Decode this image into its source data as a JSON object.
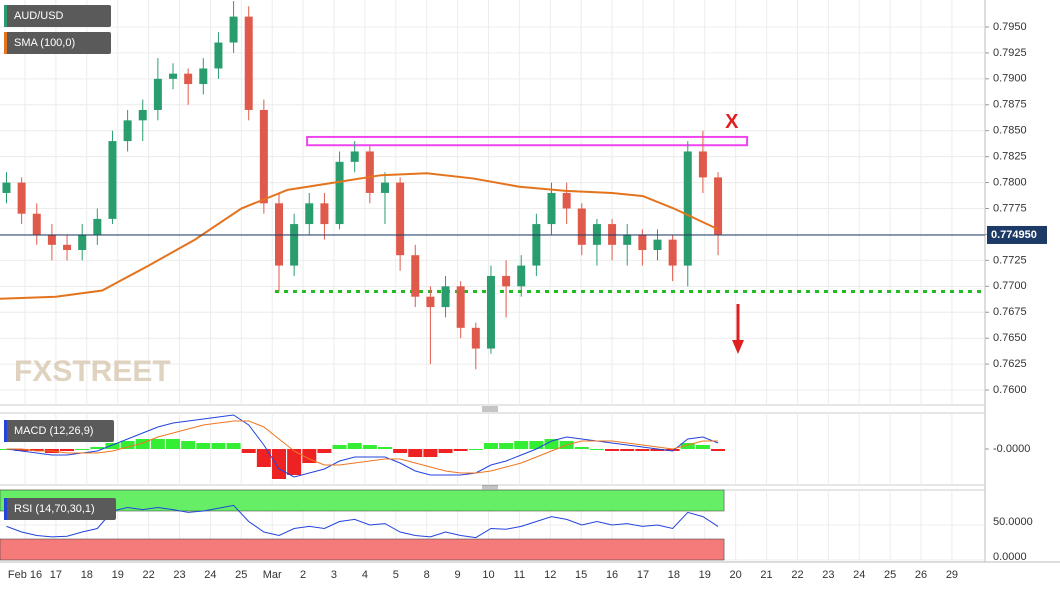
{
  "chart_data": {
    "type": "candlestick",
    "series_name": "AUD/USD",
    "watermark": "FXSTREET",
    "up_color": "#2a9d6f",
    "down_color": "#e05a4c",
    "x": [
      -0.6,
      -0.11,
      0.38,
      0.87,
      1.36,
      1.85,
      2.34,
      2.83,
      3.32,
      3.81,
      4.3,
      4.79,
      5.28,
      5.77,
      6.26,
      6.75,
      7.24,
      7.73,
      8.22,
      8.71,
      9.2,
      9.69,
      10.18,
      10.67,
      11.16,
      11.65,
      12.14,
      12.63,
      13.12,
      13.61,
      14.1,
      14.59,
      15.08,
      15.57,
      16.06,
      16.55,
      17.04,
      17.53,
      18.02,
      18.51,
      19.0,
      19.49,
      19.98,
      20.47,
      20.96,
      21.45,
      21.94,
      22.43
    ],
    "open": [
      0.779,
      0.78,
      0.777,
      0.775,
      0.774,
      0.7735,
      0.775,
      0.7765,
      0.784,
      0.786,
      0.787,
      0.79,
      0.7905,
      0.7895,
      0.791,
      0.7935,
      0.796,
      0.787,
      0.778,
      0.772,
      0.776,
      0.778,
      0.776,
      0.782,
      0.783,
      0.779,
      0.78,
      0.773,
      0.769,
      0.768,
      0.77,
      0.766,
      0.764,
      0.771,
      0.77,
      0.772,
      0.776,
      0.779,
      0.7775,
      0.774,
      0.776,
      0.774,
      0.775,
      0.7735,
      0.7745,
      0.772,
      0.783,
      0.7805
    ],
    "high": [
      0.781,
      0.7805,
      0.778,
      0.776,
      0.775,
      0.776,
      0.7775,
      0.785,
      0.787,
      0.788,
      0.792,
      0.7915,
      0.791,
      0.792,
      0.7945,
      0.7975,
      0.797,
      0.788,
      0.779,
      0.777,
      0.779,
      0.779,
      0.783,
      0.784,
      0.7835,
      0.781,
      0.7805,
      0.774,
      0.77,
      0.771,
      0.7705,
      0.7665,
      0.772,
      0.7725,
      0.773,
      0.777,
      0.78,
      0.78,
      0.778,
      0.7765,
      0.7765,
      0.776,
      0.7755,
      0.7755,
      0.775,
      0.784,
      0.785,
      0.781
    ],
    "low": [
      0.778,
      0.776,
      0.774,
      0.7725,
      0.7725,
      0.7725,
      0.774,
      0.776,
      0.783,
      0.784,
      0.786,
      0.789,
      0.7875,
      0.7885,
      0.79,
      0.7925,
      0.786,
      0.777,
      0.7695,
      0.771,
      0.775,
      0.7745,
      0.7755,
      0.781,
      0.778,
      0.776,
      0.7715,
      0.768,
      0.7625,
      0.767,
      0.765,
      0.762,
      0.7635,
      0.767,
      0.769,
      0.771,
      0.775,
      0.776,
      0.773,
      0.772,
      0.7725,
      0.772,
      0.772,
      0.7725,
      0.7705,
      0.77,
      0.779,
      0.773
    ],
    "close": [
      0.78,
      0.777,
      0.775,
      0.774,
      0.7735,
      0.775,
      0.7765,
      0.784,
      0.786,
      0.787,
      0.79,
      0.7905,
      0.7895,
      0.791,
      0.7935,
      0.796,
      0.787,
      0.778,
      0.772,
      0.776,
      0.778,
      0.776,
      0.782,
      0.783,
      0.779,
      0.78,
      0.773,
      0.769,
      0.768,
      0.77,
      0.766,
      0.764,
      0.771,
      0.77,
      0.772,
      0.776,
      0.779,
      0.7775,
      0.774,
      0.776,
      0.774,
      0.775,
      0.7735,
      0.7745,
      0.772,
      0.783,
      0.7805,
      0.775
    ],
    "sma": {
      "name": "SMA (100,0)",
      "color": "#e4731e",
      "x": [
        -0.81,
        1,
        2.5,
        4,
        5.5,
        7,
        8.5,
        10,
        11.5,
        13,
        14.5,
        16,
        17.5,
        19,
        20,
        21,
        22.43
      ],
      "values": [
        0.7688,
        0.769,
        0.7696,
        0.772,
        0.7745,
        0.7775,
        0.7793,
        0.78,
        0.7807,
        0.7809,
        0.7804,
        0.7796,
        0.7792,
        0.779,
        0.7787,
        0.7775,
        0.7755
      ]
    },
    "current_price": {
      "value": 0.77495,
      "label": "0.774950"
    },
    "resistance": {
      "low": 0.7836,
      "high": 0.7844,
      "x": [
        9.13,
        23.37
      ],
      "color": "#ee44ee"
    },
    "support": {
      "value": 0.7695,
      "x": [
        8.09,
        31.07
      ],
      "color": "#22bb22"
    },
    "annotation": "X",
    "xlim": [
      -0.81,
      31.07
    ],
    "xticks": [
      {
        "value": 0,
        "label": "Feb 16"
      },
      {
        "value": 1,
        "label": "17"
      },
      {
        "value": 2,
        "label": "18"
      },
      {
        "value": 3,
        "label": "19"
      },
      {
        "value": 4,
        "label": "22"
      },
      {
        "value": 5,
        "label": "23"
      },
      {
        "value": 6,
        "label": "24"
      },
      {
        "value": 7,
        "label": "25"
      },
      {
        "value": 8,
        "label": "Mar"
      },
      {
        "value": 9,
        "label": "2"
      },
      {
        "value": 10,
        "label": "3"
      },
      {
        "value": 11,
        "label": "4"
      },
      {
        "value": 12,
        "label": "5"
      },
      {
        "value": 13,
        "label": "8"
      },
      {
        "value": 14,
        "label": "9"
      },
      {
        "value": 15,
        "label": "10"
      },
      {
        "value": 16,
        "label": "11"
      },
      {
        "value": 17,
        "label": "12"
      },
      {
        "value": 18,
        "label": "15"
      },
      {
        "value": 19,
        "label": "16"
      },
      {
        "value": 20,
        "label": "17"
      },
      {
        "value": 21,
        "label": "18"
      },
      {
        "value": 22,
        "label": "19"
      },
      {
        "value": 23,
        "label": "20"
      },
      {
        "value": 24,
        "label": "21"
      },
      {
        "value": 25,
        "label": "22"
      },
      {
        "value": 26,
        "label": "23"
      },
      {
        "value": 27,
        "label": "24"
      },
      {
        "value": 28,
        "label": "25"
      },
      {
        "value": 29,
        "label": "26"
      },
      {
        "value": 30,
        "label": "29"
      }
    ],
    "ylim": [
      0.75856,
      0.7976
    ],
    "yticks": [
      {
        "value": 0.76,
        "label": "0.7600"
      },
      {
        "value": 0.7625,
        "label": "0.7625"
      },
      {
        "value": 0.765,
        "label": "0.7650"
      },
      {
        "value": 0.7675,
        "label": "0.7675"
      },
      {
        "value": 0.77,
        "label": "0.7700"
      },
      {
        "value": 0.7725,
        "label": "0.7725"
      },
      {
        "value": 0.775,
        "label": "0.7750"
      },
      {
        "value": 0.7775,
        "label": "0.7775"
      },
      {
        "value": 0.78,
        "label": "0.7800"
      },
      {
        "value": 0.7825,
        "label": "0.7825"
      },
      {
        "value": 0.785,
        "label": "0.7850"
      },
      {
        "value": 0.7875,
        "label": "0.7875"
      },
      {
        "value": 0.79,
        "label": "0.7900"
      },
      {
        "value": 0.7925,
        "label": "0.7925"
      },
      {
        "value": 0.795,
        "label": "0.7950"
      }
    ],
    "grid": true,
    "macd": {
      "name": "MACD (12,26,9)",
      "ylim": [
        -0.0018,
        0.0018
      ],
      "yticks": [
        {
          "value": 0,
          "label": "-0.0000"
        }
      ],
      "macd_color": "#2244dd",
      "signal_color": "#ee7722",
      "pos_color": "#33ee33",
      "neg_color": "#ee2222",
      "macd": [
        0,
        -0.0001,
        -0.0002,
        -0.0003,
        -0.0003,
        -0.0002,
        -0.0001,
        0.0002,
        0.0005,
        0.0008,
        0.0011,
        0.0013,
        0.0014,
        0.0015,
        0.0016,
        0.0017,
        0.0012,
        0.0002,
        -0.001,
        -0.0014,
        -0.0012,
        -0.001,
        -0.0006,
        -0.0004,
        -0.0004,
        -0.0004,
        -0.0007,
        -0.0011,
        -0.0013,
        -0.0013,
        -0.0013,
        -0.0012,
        -0.0008,
        -0.0006,
        -0.0003,
        0,
        0.0004,
        0.0006,
        0.0005,
        0.0004,
        0.0003,
        0.0002,
        0.0001,
        0,
        -0.0001,
        0.0005,
        0.0006,
        0.0003
      ],
      "signal": [
        0,
        0,
        -0.0001,
        -0.0001,
        -0.0002,
        -0.0002,
        -0.0002,
        -0.0001,
        0.0001,
        0.0003,
        0.0006,
        0.0008,
        0.001,
        0.0012,
        0.0013,
        0.0014,
        0.0014,
        0.0011,
        0.0005,
        -0.0001,
        -0.0005,
        -0.0008,
        -0.0008,
        -0.0007,
        -0.0006,
        -0.0005,
        -0.0005,
        -0.0007,
        -0.0009,
        -0.0011,
        -0.0012,
        -0.0012,
        -0.0011,
        -0.0009,
        -0.0007,
        -0.0004,
        -0.0001,
        0.0002,
        0.0004,
        0.0004,
        0.0004,
        0.0003,
        0.0002,
        0.0001,
        0,
        0.0002,
        0.0004,
        0.0004
      ],
      "histogram": [
        0,
        -0.0001,
        -0.0001,
        -0.0002,
        -0.0001,
        0,
        0.0001,
        0.0003,
        0.0004,
        0.0005,
        0.0005,
        0.0005,
        0.0004,
        0.0003,
        0.0003,
        0.0003,
        -0.0002,
        -0.0009,
        -0.0015,
        -0.0013,
        -0.0007,
        -0.0002,
        0.0002,
        0.0003,
        0.0002,
        0.0001,
        -0.0002,
        -0.0004,
        -0.0004,
        -0.0002,
        -0.0001,
        0,
        0.0003,
        0.0003,
        0.0004,
        0.0004,
        0.0005,
        0.0004,
        0.0001,
        0,
        -0.0001,
        -0.0001,
        -0.0001,
        -0.0001,
        -0.0001,
        0.0003,
        0.0002,
        -0.0001
      ]
    },
    "rsi": {
      "name": "RSI (14,70,30,1)",
      "ylim": [
        0,
        100
      ],
      "yticks": [
        {
          "value": 0,
          "label": "0.0000"
        },
        {
          "value": 50,
          "label": "50.0000"
        }
      ],
      "overbought": 70,
      "oversold": 30,
      "color": "#2244dd",
      "values": [
        48,
        40,
        35,
        33,
        34,
        40,
        45,
        70,
        75,
        72,
        75,
        72,
        68,
        70,
        74,
        78,
        55,
        40,
        35,
        45,
        48,
        45,
        55,
        58,
        50,
        52,
        40,
        35,
        33,
        40,
        35,
        32,
        45,
        44,
        48,
        55,
        62,
        58,
        50,
        55,
        50,
        52,
        48,
        50,
        45,
        68,
        62,
        48
      ]
    }
  }
}
